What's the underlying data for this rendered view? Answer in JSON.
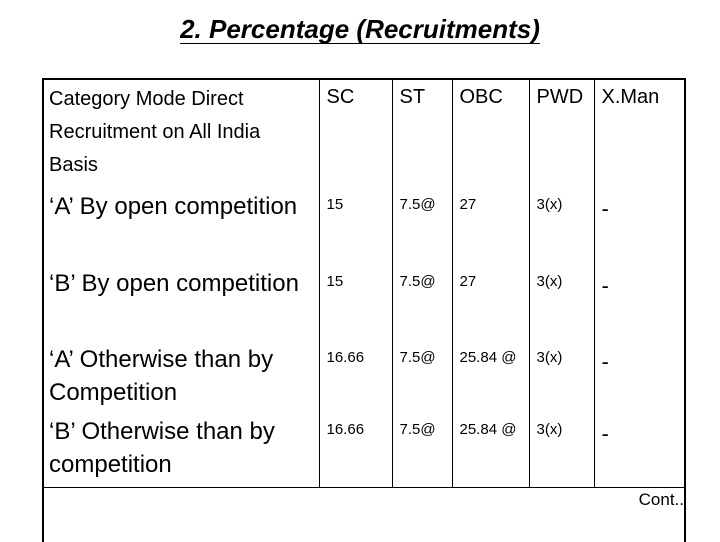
{
  "header": {
    "title": "2. Percentage (Recruitments)"
  },
  "table": {
    "columns": [
      "Category Mode Direct Recruitment on All India Basis",
      "SC",
      "ST",
      "OBC",
      "PWD",
      "X.Man"
    ],
    "rows": [
      [
        "‘A’ By open competition",
        "15",
        "7.5@",
        "27",
        "3(x)",
        "-"
      ],
      [
        "‘B’ By open competition",
        "15",
        "7.5@",
        "27",
        "3(x)",
        "-"
      ],
      [
        "‘A’ Otherwise than by Competition",
        "16.66",
        "7.5@",
        "25.84 @",
        "3(x)",
        "-"
      ],
      [
        "‘B’ Otherwise than by competition",
        "16.66",
        "7.5@",
        "25.84 @",
        "3(x)",
        "-"
      ]
    ]
  },
  "footer": {
    "note": "Cont.."
  }
}
